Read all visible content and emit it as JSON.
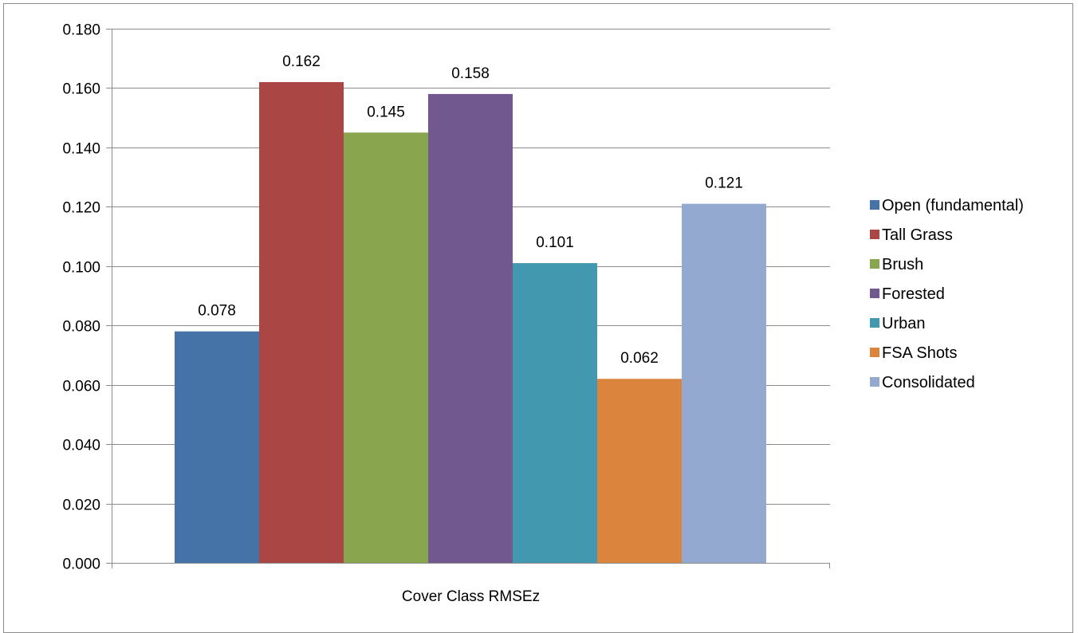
{
  "chart_data": {
    "type": "bar",
    "categories": [
      "Cover Class RMSEz"
    ],
    "series": [
      {
        "name": "Open (fundamental)",
        "values": [
          0.078
        ],
        "label": "0.078",
        "color": "#4572A7"
      },
      {
        "name": "Tall Grass",
        "values": [
          0.162
        ],
        "label": "0.162",
        "color": "#AA4643"
      },
      {
        "name": "Brush",
        "values": [
          0.145
        ],
        "label": "0.145",
        "color": "#89A54E"
      },
      {
        "name": "Forested",
        "values": [
          0.158
        ],
        "label": "0.158",
        "color": "#71588F"
      },
      {
        "name": "Urban",
        "values": [
          0.101
        ],
        "label": "0.101",
        "color": "#4198AF"
      },
      {
        "name": "FSA Shots",
        "values": [
          0.062
        ],
        "label": "0.062",
        "color": "#DB843D"
      },
      {
        "name": "Consolidated",
        "values": [
          0.121
        ],
        "label": "0.121",
        "color": "#93A9CF"
      }
    ],
    "ylim": [
      0,
      0.18
    ],
    "yticks": [
      "0.000",
      "0.020",
      "0.040",
      "0.060",
      "0.080",
      "0.100",
      "0.120",
      "0.140",
      "0.160",
      "0.180"
    ],
    "xlabel": "Cover Class RMSEz",
    "grid": true,
    "legend_position": "right"
  }
}
